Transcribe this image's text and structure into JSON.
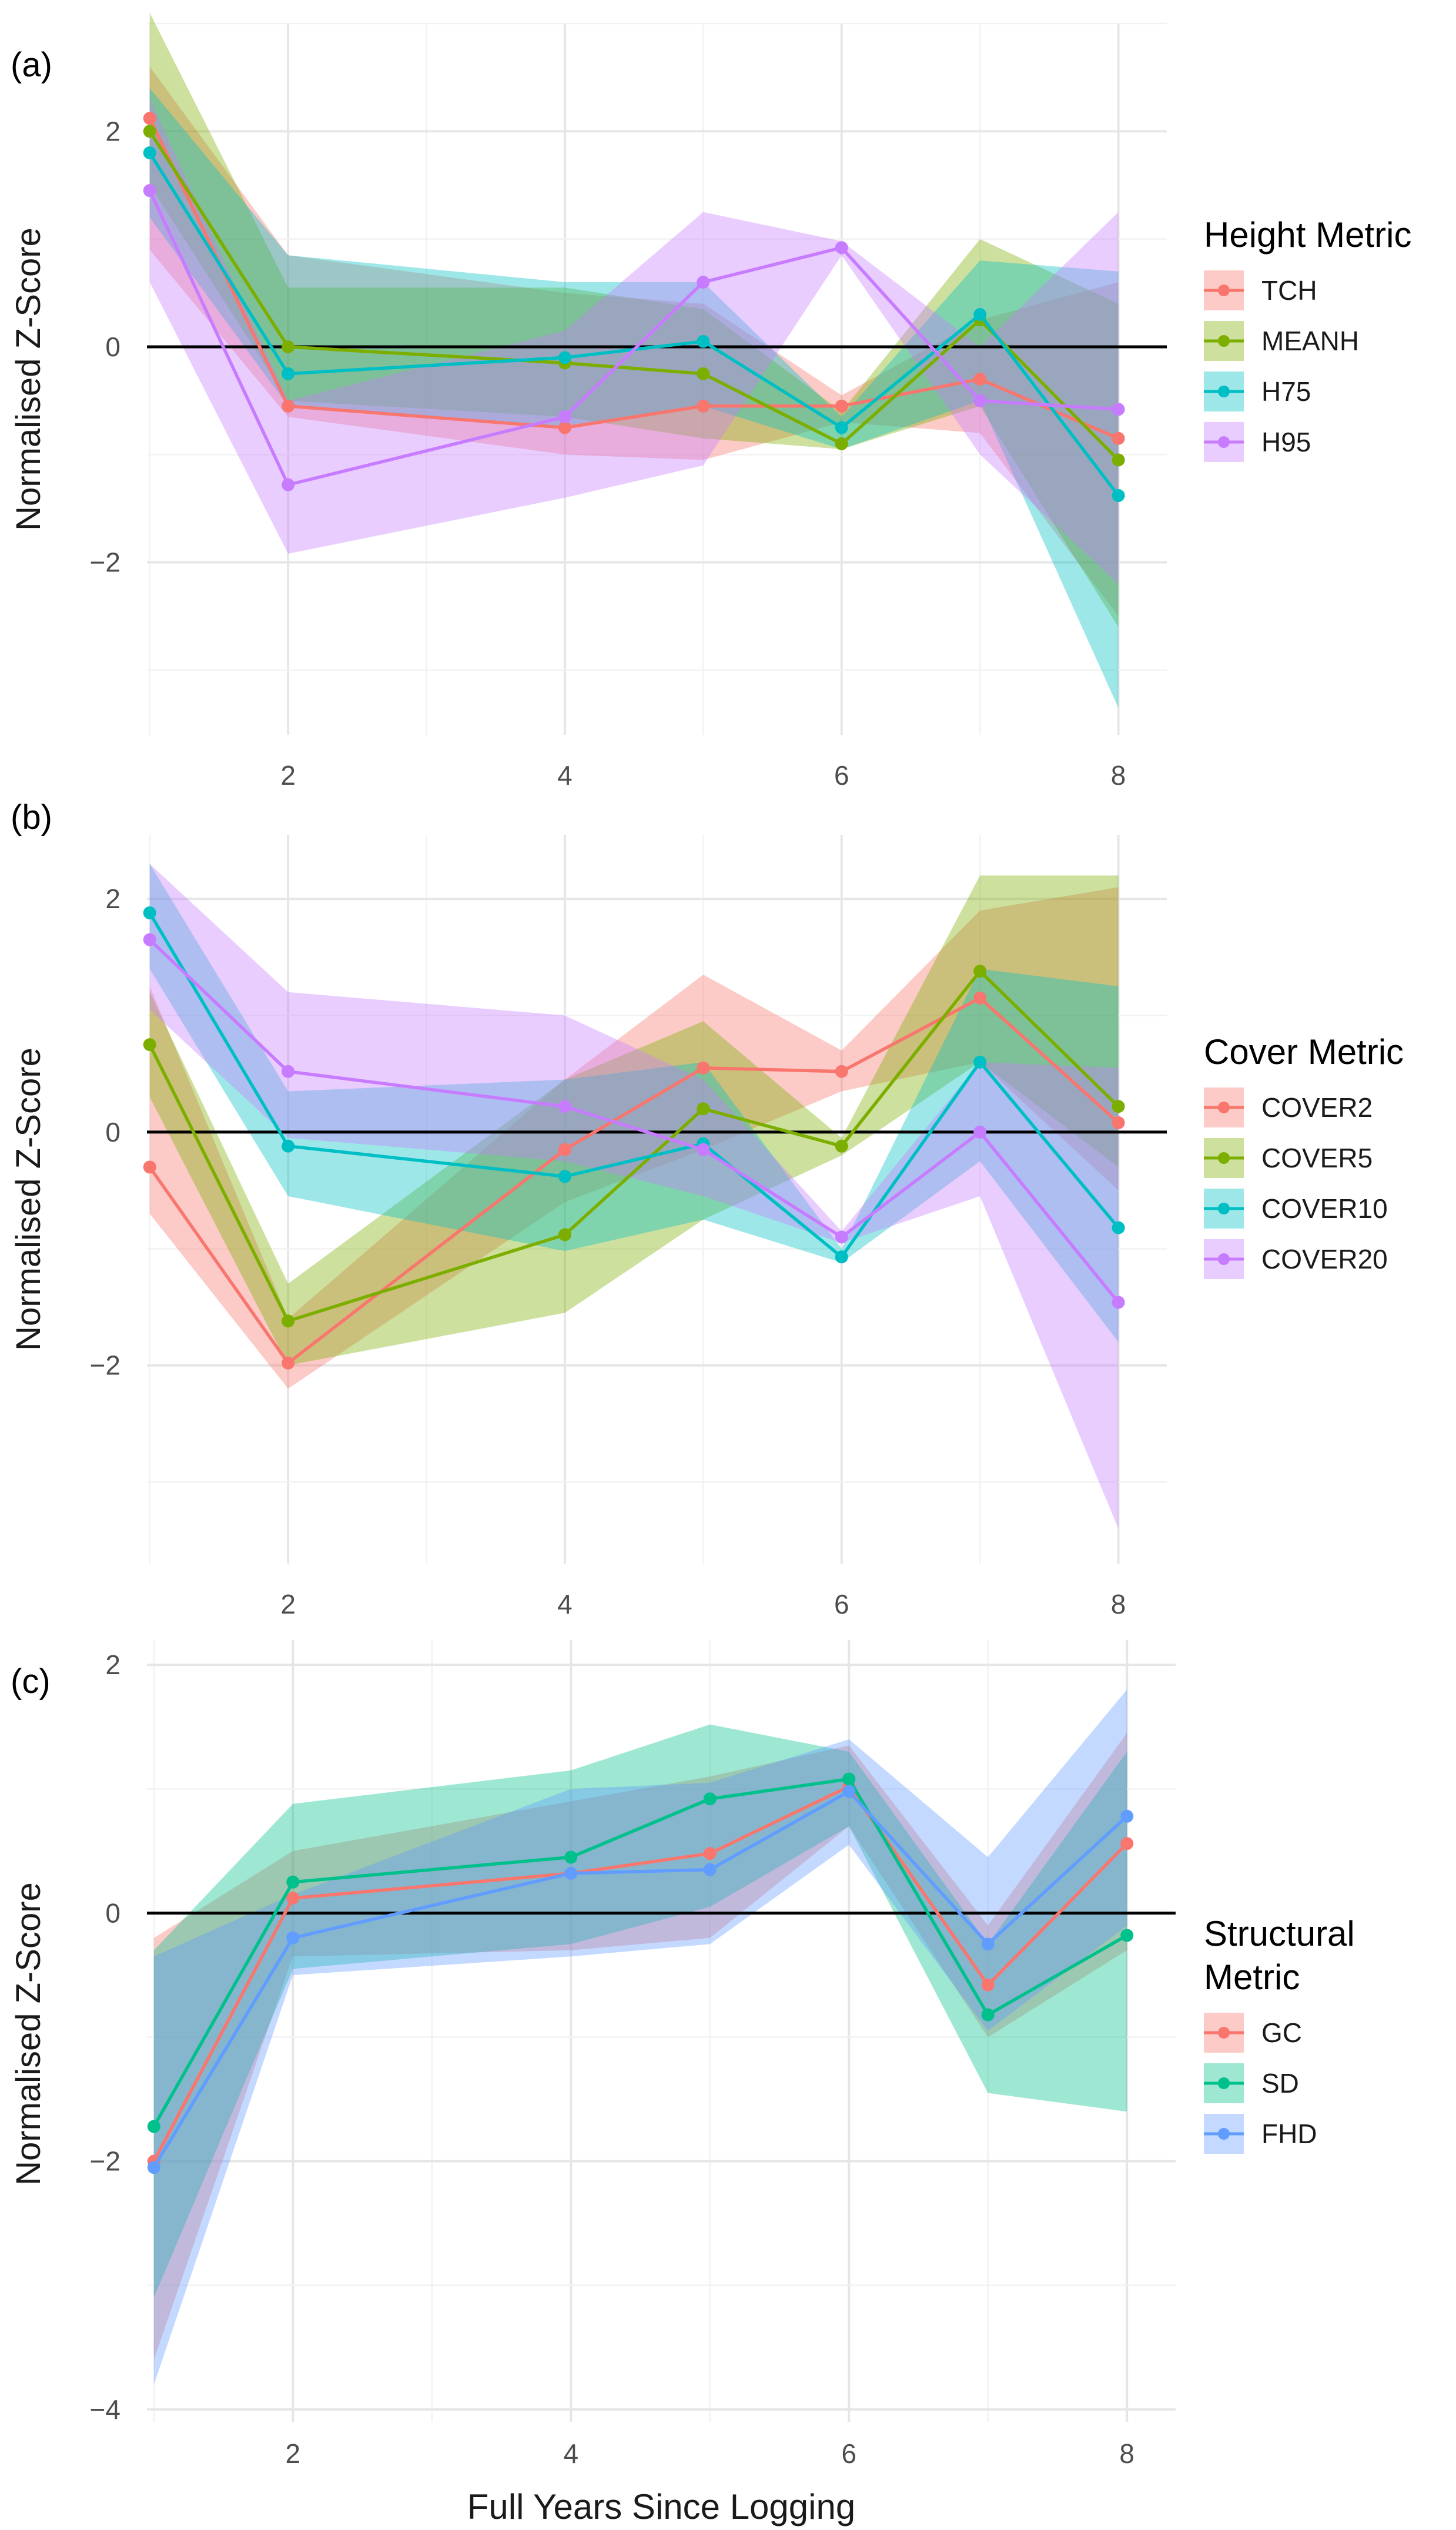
{
  "chart_data": [
    {
      "type": "line",
      "panel_label": "(a)",
      "ylabel": "Normalised Z-Score",
      "xlabel": "",
      "xlim": [
        0.98,
        8.35
      ],
      "ylim": [
        -3.6,
        3.0
      ],
      "xticks": [
        2,
        4,
        6,
        8
      ],
      "yticks": [
        -2,
        0,
        2
      ],
      "grid": true,
      "legend_title": "Height Metric",
      "legend_position": "right",
      "x": [
        1,
        2,
        4,
        5,
        6,
        7,
        8
      ],
      "series": [
        {
          "name": "TCH",
          "color": "#F8766D",
          "values": [
            2.12,
            -0.55,
            -0.75,
            -0.55,
            -0.55,
            -0.3,
            -0.85
          ],
          "lower": [
            0.9,
            -0.65,
            -1.0,
            -1.05,
            -0.7,
            -0.8,
            -2.5
          ],
          "upper": [
            2.6,
            0.85,
            0.5,
            0.4,
            -0.45,
            0.25,
            0.6
          ]
        },
        {
          "name": "MEANH",
          "color": "#7CAE00",
          "values": [
            2.0,
            0.0,
            -0.15,
            -0.25,
            -0.9,
            0.25,
            -1.05
          ],
          "lower": [
            1.5,
            -0.5,
            -0.65,
            -0.85,
            -0.95,
            -0.55,
            -2.6
          ],
          "upper": [
            3.1,
            0.55,
            0.55,
            0.35,
            -0.6,
            1.0,
            0.4
          ]
        },
        {
          "name": "H75",
          "color": "#00BFC4",
          "values": [
            1.8,
            -0.25,
            -0.1,
            0.05,
            -0.75,
            0.3,
            -1.38
          ],
          "lower": [
            1.2,
            -0.55,
            -0.75,
            -0.55,
            -0.95,
            -0.5,
            -3.35
          ],
          "upper": [
            2.4,
            0.85,
            0.6,
            0.6,
            -0.65,
            0.8,
            0.7
          ]
        },
        {
          "name": "H95",
          "color": "#C77CFF",
          "values": [
            1.45,
            -1.28,
            -0.65,
            0.6,
            0.92,
            -0.5,
            -0.58
          ],
          "lower": [
            0.6,
            -1.92,
            -1.4,
            -1.1,
            0.85,
            -1.0,
            -2.2
          ],
          "upper": [
            2.3,
            -0.5,
            0.15,
            1.25,
            0.98,
            0.0,
            1.25
          ]
        }
      ]
    },
    {
      "type": "line",
      "panel_label": "(b)",
      "ylabel": "Normalised Z-Score",
      "xlabel": "",
      "xlim": [
        0.98,
        8.35
      ],
      "ylim": [
        -3.7,
        2.55
      ],
      "xticks": [
        2,
        4,
        6,
        8
      ],
      "yticks": [
        -2,
        0,
        2
      ],
      "grid": true,
      "legend_title": "Cover Metric",
      "legend_position": "right",
      "x": [
        1,
        2,
        4,
        5,
        6,
        7,
        8
      ],
      "series": [
        {
          "name": "COVER2",
          "color": "#F8766D",
          "values": [
            -0.3,
            -1.98,
            -0.15,
            0.55,
            0.52,
            1.15,
            0.08
          ],
          "lower": [
            -0.7,
            -2.2,
            -0.6,
            -0.15,
            0.35,
            0.6,
            -0.5
          ],
          "upper": [
            1.25,
            -1.6,
            0.45,
            1.35,
            0.7,
            1.9,
            2.1
          ]
        },
        {
          "name": "COVER5",
          "color": "#7CAE00",
          "values": [
            0.75,
            -1.62,
            -0.88,
            0.2,
            -0.12,
            1.38,
            0.22
          ],
          "lower": [
            0.3,
            -2.0,
            -1.55,
            -0.75,
            -0.2,
            0.6,
            -0.3
          ],
          "upper": [
            1.2,
            -1.3,
            0.45,
            0.95,
            -0.05,
            2.2,
            2.2
          ]
        },
        {
          "name": "COVER10",
          "color": "#00BFC4",
          "values": [
            1.88,
            -0.12,
            -0.38,
            -0.1,
            -1.07,
            0.6,
            -0.82
          ],
          "lower": [
            1.4,
            -0.55,
            -1.02,
            -0.75,
            -1.12,
            -0.25,
            -1.8
          ],
          "upper": [
            2.3,
            0.35,
            0.45,
            0.6,
            -1.0,
            1.4,
            1.25
          ]
        },
        {
          "name": "COVER20",
          "color": "#C77CFF",
          "values": [
            1.65,
            0.52,
            0.22,
            -0.15,
            -0.9,
            0.0,
            -1.46
          ],
          "lower": [
            1.05,
            -0.05,
            -0.25,
            -0.55,
            -0.95,
            -0.55,
            -3.4
          ],
          "upper": [
            2.3,
            1.2,
            1.0,
            0.45,
            -0.85,
            0.6,
            0.55
          ]
        }
      ]
    },
    {
      "type": "line",
      "panel_label": "(c)",
      "ylabel": "Normalised Z-Score",
      "xlabel": "Full Years Since Logging",
      "xlim": [
        0.95,
        8.35
      ],
      "ylim": [
        -4.1,
        2.2
      ],
      "xticks": [
        2,
        4,
        6,
        8
      ],
      "yticks": [
        -4,
        -2,
        0,
        2
      ],
      "grid": true,
      "legend_title": "Structural\nMetric",
      "legend_position": "right",
      "x": [
        1,
        2,
        4,
        5,
        6,
        7,
        8
      ],
      "series": [
        {
          "name": "GC",
          "color": "#F8766D",
          "values": [
            -2.0,
            0.12,
            0.32,
            0.48,
            1.02,
            -0.58,
            0.56
          ],
          "lower": [
            -3.6,
            -0.35,
            -0.3,
            -0.2,
            0.7,
            -1.0,
            -0.3
          ],
          "upper": [
            -0.2,
            0.5,
            0.9,
            1.1,
            1.35,
            -0.1,
            1.45
          ]
        },
        {
          "name": "SD",
          "color": "#00C08B",
          "values": [
            -1.72,
            0.25,
            0.45,
            0.92,
            1.08,
            -0.82,
            -0.18
          ],
          "lower": [
            -3.1,
            -0.45,
            -0.25,
            0.05,
            0.7,
            -1.45,
            -1.6
          ],
          "upper": [
            -0.3,
            0.88,
            1.15,
            1.52,
            1.3,
            -0.25,
            1.3
          ]
        },
        {
          "name": "FHD",
          "color": "#619CFF",
          "values": [
            -2.05,
            -0.2,
            0.32,
            0.35,
            0.98,
            -0.25,
            0.78
          ],
          "lower": [
            -3.8,
            -0.5,
            -0.35,
            -0.25,
            0.55,
            -0.95,
            -0.1
          ],
          "upper": [
            -0.35,
            0.15,
            1.0,
            1.05,
            1.4,
            0.45,
            1.8
          ]
        }
      ]
    }
  ]
}
